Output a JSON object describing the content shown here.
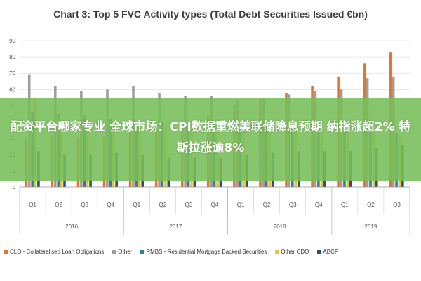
{
  "chart_data": {
    "type": "bar",
    "title": "Chart 3: Top 5 FVC Activity types (Total Debt Securities Issued €bn)",
    "categories": [
      "Q1",
      "Q2",
      "Q3",
      "Q4",
      "Q1",
      "Q2",
      "Q3",
      "Q4",
      "Q1",
      "Q2",
      "Q3",
      "Q4",
      "Q1",
      "Q2",
      "Q3"
    ],
    "groups": [
      {
        "label": "2016",
        "start": 0,
        "count": 4
      },
      {
        "label": "2017",
        "start": 4,
        "count": 4
      },
      {
        "label": "2018",
        "start": 8,
        "count": 4
      },
      {
        "label": "2019",
        "start": 12,
        "count": 3
      }
    ],
    "ylim": [
      0,
      90
    ],
    "yticks": [
      0,
      10,
      20,
      30,
      40,
      50,
      60,
      70,
      80,
      90
    ],
    "grid": true,
    "legend_position": "bottom",
    "series": [
      {
        "name": "CLO - Collateralised Loan Obligations",
        "color": "#e8732a",
        "values": [
          30,
          32,
          30,
          31,
          33,
          35,
          38,
          44,
          50,
          54,
          58,
          62,
          68,
          76,
          83
        ]
      },
      {
        "name": "Other",
        "color": "#9e9e9e",
        "values": [
          69,
          62,
          59,
          60,
          62,
          58,
          56,
          56,
          53,
          55,
          57,
          59,
          60,
          67,
          68
        ]
      },
      {
        "name": "RMBS - Residential Mortgage Backed Securities",
        "color": "#2e7fa6",
        "values": [
          46,
          45,
          44,
          42,
          40,
          40,
          38,
          38,
          36,
          37,
          36,
          36,
          36,
          34,
          33
        ]
      },
      {
        "name": "Other CDO",
        "color": "#f2c12e",
        "values": [
          55,
          40,
          38,
          39,
          38,
          37,
          35,
          35,
          34,
          36,
          35,
          34,
          35,
          34,
          30
        ]
      },
      {
        "name": "ABCP",
        "color": "#1f4e9c",
        "values": [
          22,
          20,
          20,
          21,
          20,
          18,
          18,
          18,
          20,
          21,
          22,
          22,
          22,
          24,
          26
        ]
      }
    ]
  },
  "banner": {
    "text": "配资平台哪家专业 全球市场：CPI数据重燃美联储降息预期 纳指涨超2% 特斯拉涨逾8%"
  }
}
